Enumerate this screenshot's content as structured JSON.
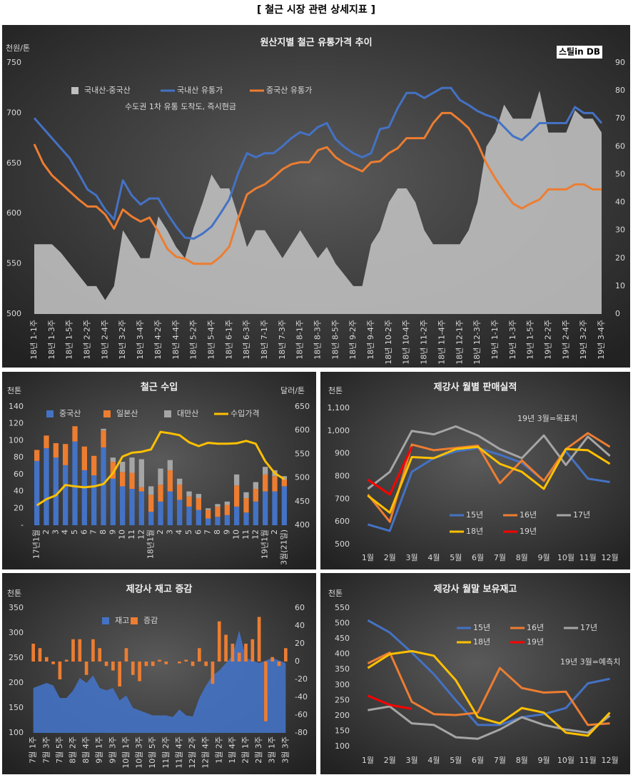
{
  "header": {
    "title": "[ 철근 시장 관련 상세지표 ]"
  },
  "chart_data": [
    {
      "type": "combo",
      "title": "원산지별 철근 유통가격 추이",
      "y_unit": "천원/톤",
      "logo": "스틸in DB",
      "annotation": "수도권 1차 유통 도착도, 즉시현금",
      "categories": [
        "18년 1-1주",
        null,
        "18년 1-3주",
        null,
        "18년 1-5주",
        null,
        "18년 2-2주",
        null,
        "18년 2-4주",
        null,
        "18년 3-2주",
        null,
        "18년 3-4주",
        null,
        "18년 4-2주",
        null,
        "18년 4-4주",
        null,
        "18년 5-2주",
        null,
        "18년 5-4주",
        null,
        "18년 6-1주",
        null,
        "18년 6-3주",
        null,
        "18년 7-1주",
        null,
        "18년 7-3주",
        null,
        "18년 8-1주",
        null,
        "18년 8-3주",
        null,
        "18년 8-5주",
        null,
        "18년 9-2주",
        null,
        "18년 9-4주",
        null,
        "18년 10-2주",
        null,
        "18년 10-4주",
        null,
        "18년 11-2주",
        null,
        "18년 11-4주",
        null,
        "18년 12-1주",
        null,
        "18년 12-3주",
        null,
        "19년 1-1주",
        null,
        "19년 1-3주",
        null,
        "19년 1-5주",
        null,
        "19년 2-2주",
        null,
        "19년 2-4주",
        null,
        "19년 3-2주",
        null,
        "19년 3-4주"
      ],
      "series": [
        {
          "name": "국내산-중국산",
          "type": "area",
          "axis": "y2",
          "color": "#bfbfbf",
          "values": [
            25,
            25,
            25,
            22,
            18,
            14,
            10,
            10,
            5,
            10,
            30,
            25,
            20,
            20,
            35,
            30,
            24,
            20,
            31,
            40,
            50,
            45,
            45,
            35,
            24,
            30,
            30,
            25,
            20,
            25,
            30,
            25,
            20,
            24,
            18,
            14,
            10,
            10,
            25,
            30,
            40,
            45,
            45,
            40,
            30,
            25,
            25,
            25,
            25,
            30,
            40,
            60,
            65,
            75,
            70,
            70,
            70,
            80,
            65,
            65,
            65,
            73,
            70,
            70,
            65
          ]
        },
        {
          "name": "국내산 유통가",
          "type": "line",
          "color": "#4472c4",
          "values": [
            695,
            685,
            675,
            665,
            655,
            640,
            624,
            618,
            604,
            594,
            633,
            618,
            609,
            615,
            615,
            600,
            587,
            576,
            575,
            580,
            587,
            600,
            614,
            640,
            660,
            656,
            660,
            660,
            667,
            675,
            681,
            678,
            686,
            690,
            674,
            666,
            660,
            656,
            660,
            684,
            686,
            705,
            720,
            720,
            715,
            720,
            725,
            725,
            713,
            708,
            702,
            698,
            695,
            686,
            677,
            673,
            681,
            690,
            690,
            690,
            690,
            706,
            700,
            700,
            690
          ]
        },
        {
          "name": "중국산 유통가",
          "type": "line",
          "color": "#ed7d31",
          "values": [
            669,
            650,
            638,
            630,
            622,
            614,
            607,
            607,
            599,
            585,
            604,
            597,
            592,
            596,
            582,
            565,
            557,
            555,
            550,
            550,
            550,
            557,
            567,
            595,
            619,
            625,
            629,
            636,
            644,
            649,
            651,
            651,
            663,
            666,
            656,
            650,
            646,
            642,
            651,
            652,
            660,
            665,
            675,
            675,
            675,
            690,
            700,
            700,
            693,
            685,
            670,
            650,
            635,
            622,
            610,
            605,
            610,
            614,
            624,
            624,
            624,
            629,
            629,
            624,
            624
          ]
        }
      ],
      "ylim": [
        500,
        750
      ],
      "yticks": [
        500,
        550,
        600,
        650,
        700,
        750
      ],
      "y2lim": [
        0,
        90
      ],
      "y2ticks": [
        0,
        10,
        20,
        30,
        40,
        50,
        60,
        70,
        80,
        90
      ]
    },
    {
      "type": "combo",
      "title": "철근 수입",
      "y_unit": "천톤",
      "y2_unit": "달러/톤",
      "stacked": true,
      "categories": [
        "17년1월",
        "2",
        "3",
        "4",
        "5",
        "6",
        "7",
        "8",
        "9",
        "10",
        "11",
        "12",
        "18년1월",
        "2",
        "3",
        "4",
        "5",
        "6",
        "7",
        "8",
        "9",
        "10",
        "11",
        "12",
        "19년1월",
        "2",
        "3월(21일)"
      ],
      "series": [
        {
          "name": "중국산",
          "type": "bar",
          "color": "#4472c4",
          "values": [
            76,
            91,
            80,
            71,
            99,
            65,
            59,
            92,
            55,
            46,
            43,
            40,
            16,
            28,
            40,
            30,
            22,
            18,
            8,
            10,
            12,
            22,
            15,
            28,
            40,
            40,
            46
          ]
        },
        {
          "name": "일본산",
          "type": "bar",
          "color": "#ed7d31",
          "values": [
            13,
            15,
            17,
            25,
            18,
            28,
            23,
            20,
            20,
            17,
            19,
            5,
            20,
            20,
            25,
            18,
            12,
            14,
            10,
            12,
            12,
            25,
            17,
            15,
            20,
            18,
            8
          ]
        },
        {
          "name": "대만산",
          "type": "bar",
          "color": "#a5a5a5",
          "values": [
            0,
            0,
            0,
            0,
            0,
            0,
            0,
            2,
            5,
            12,
            18,
            33,
            10,
            19,
            12,
            7,
            6,
            5,
            2,
            3,
            4,
            13,
            7,
            8,
            9,
            7,
            4
          ]
        },
        {
          "name": "수입가격",
          "type": "line",
          "axis": "y2",
          "color": "#ffc000",
          "values": [
            442,
            455,
            463,
            485,
            482,
            480,
            482,
            487,
            510,
            545,
            553,
            555,
            560,
            597,
            594,
            590,
            575,
            567,
            574,
            572,
            572,
            573,
            578,
            572,
            535,
            510,
            497
          ]
        }
      ],
      "ylim": [
        0,
        140
      ],
      "yticks": [
        {
          "value": 0,
          "label": "-"
        },
        20,
        40,
        60,
        80,
        100,
        120,
        140
      ],
      "y2lim": [
        400,
        650
      ],
      "y2ticks": [
        400,
        450,
        500,
        550,
        600,
        650
      ]
    },
    {
      "type": "line",
      "title": "제강사 월별 판매실적",
      "y_unit": "천톤",
      "annotation": "19년 3월=목표치",
      "categories": [
        "1월",
        "2월",
        "3월",
        "4월",
        "5월",
        "6월",
        "7월",
        "8월",
        "9월",
        "10월",
        "11월",
        "12월"
      ],
      "series": [
        {
          "name": "15년",
          "type": "line",
          "color": "#4472c4",
          "values": [
            588,
            560,
            820,
            880,
            910,
            925,
            895,
            860,
            780,
            910,
            790,
            775
          ]
        },
        {
          "name": "16년",
          "type": "line",
          "color": "#ed7d31",
          "values": [
            720,
            600,
            940,
            915,
            925,
            935,
            770,
            870,
            780,
            920,
            990,
            930
          ]
        },
        {
          "name": "17년",
          "type": "line",
          "color": "#a5a5a5",
          "values": [
            745,
            820,
            1000,
            985,
            1020,
            980,
            920,
            880,
            980,
            850,
            975,
            890
          ]
        },
        {
          "name": "18년",
          "type": "line",
          "color": "#ffc000",
          "values": [
            715,
            640,
            885,
            880,
            920,
            930,
            855,
            820,
            745,
            920,
            915,
            855
          ]
        },
        {
          "name": "19년",
          "type": "line",
          "color": "#ff0000",
          "values": [
            785,
            720,
            930,
            null,
            null,
            null,
            null,
            null,
            null,
            null,
            null,
            null
          ]
        }
      ],
      "ylim": [
        500,
        1100
      ],
      "yticks": [
        500,
        600,
        700,
        800,
        900,
        {
          "value": 1000,
          "label": "1,000"
        },
        {
          "value": 1100,
          "label": "1,100"
        }
      ]
    },
    {
      "type": "combo",
      "title": "제강사 재고 증감",
      "y_unit": "천톤",
      "categories": [
        "7월 1주",
        null,
        "7월 3주",
        null,
        "7월 5주",
        null,
        "8월 2주",
        null,
        "8월 4주",
        null,
        "9월 1주",
        null,
        "9월 3주",
        null,
        "10월 1주",
        null,
        "10월 3주",
        null,
        "10월 5주",
        null,
        "11월 2주",
        null,
        "11월 4주",
        null,
        "12월 2주",
        null,
        "12월 4주",
        null,
        "1월 2주",
        null,
        "1월 4주",
        null,
        "2월 1주",
        null,
        "2월 3주",
        null,
        "3월 1주",
        null,
        "3월 3주"
      ],
      "series": [
        {
          "name": "재고",
          "type": "area",
          "color": "#4472c4",
          "values": [
            190,
            195,
            200,
            195,
            170,
            170,
            185,
            210,
            200,
            215,
            190,
            185,
            190,
            165,
            175,
            150,
            145,
            140,
            135,
            135,
            135,
            132,
            147,
            135,
            133,
            170,
            195,
            215,
            225,
            240,
            255,
            305,
            250,
            245,
            240,
            245,
            250,
            245,
            240
          ]
        },
        {
          "name": "증감",
          "type": "bar",
          "axis": "y2",
          "color": "#ed7d31",
          "values": [
            20,
            15,
            5,
            -3,
            -20,
            2,
            25,
            25,
            -15,
            25,
            15,
            -5,
            -10,
            -28,
            15,
            -15,
            -22,
            -5,
            -5,
            2,
            -3,
            0,
            -2,
            2,
            -5,
            15,
            -5,
            -25,
            45,
            30,
            20,
            10,
            20,
            25,
            50,
            -67,
            5,
            -5,
            15
          ]
        }
      ],
      "ylim": [
        100,
        350
      ],
      "yticks": [
        100,
        150,
        200,
        250,
        300,
        350
      ],
      "y2lim": [
        -80,
        60
      ],
      "y2ticks": [
        -80,
        -60,
        -40,
        -20,
        0,
        20,
        40,
        60
      ]
    },
    {
      "type": "line",
      "title": "제강사 월말 보유재고",
      "y_unit": "천톤",
      "annotation": "19년 3월=예측치",
      "categories": [
        "1월",
        "2월",
        "3월",
        "4월",
        "5월",
        "6월",
        "7월",
        "8월",
        "9월",
        "10월",
        "11월",
        "12월"
      ],
      "series": [
        {
          "name": "15년",
          "type": "line",
          "color": "#4472c4",
          "values": [
            510,
            470,
            405,
            335,
            250,
            170,
            170,
            195,
            205,
            225,
            305,
            320
          ]
        },
        {
          "name": "16년",
          "type": "line",
          "color": "#ed7d31",
          "values": [
            370,
            405,
            245,
            205,
            202,
            210,
            355,
            290,
            275,
            278,
            170,
            175
          ]
        },
        {
          "name": "17년",
          "type": "line",
          "color": "#a5a5a5",
          "values": [
            218,
            230,
            175,
            170,
            130,
            125,
            155,
            195,
            170,
            155,
            145,
            200
          ]
        },
        {
          "name": "18년",
          "type": "line",
          "color": "#ffc000",
          "values": [
            355,
            400,
            410,
            395,
            315,
            195,
            175,
            225,
            210,
            145,
            135,
            210
          ]
        },
        {
          "name": "19년",
          "type": "line",
          "color": "#ff0000",
          "values": [
            265,
            235,
            222,
            null,
            null,
            null,
            null,
            null,
            null,
            null,
            null,
            null
          ]
        }
      ],
      "ylim": [
        100,
        550
      ],
      "yticks": [
        100,
        150,
        200,
        250,
        300,
        350,
        400,
        450,
        500,
        550
      ]
    }
  ]
}
